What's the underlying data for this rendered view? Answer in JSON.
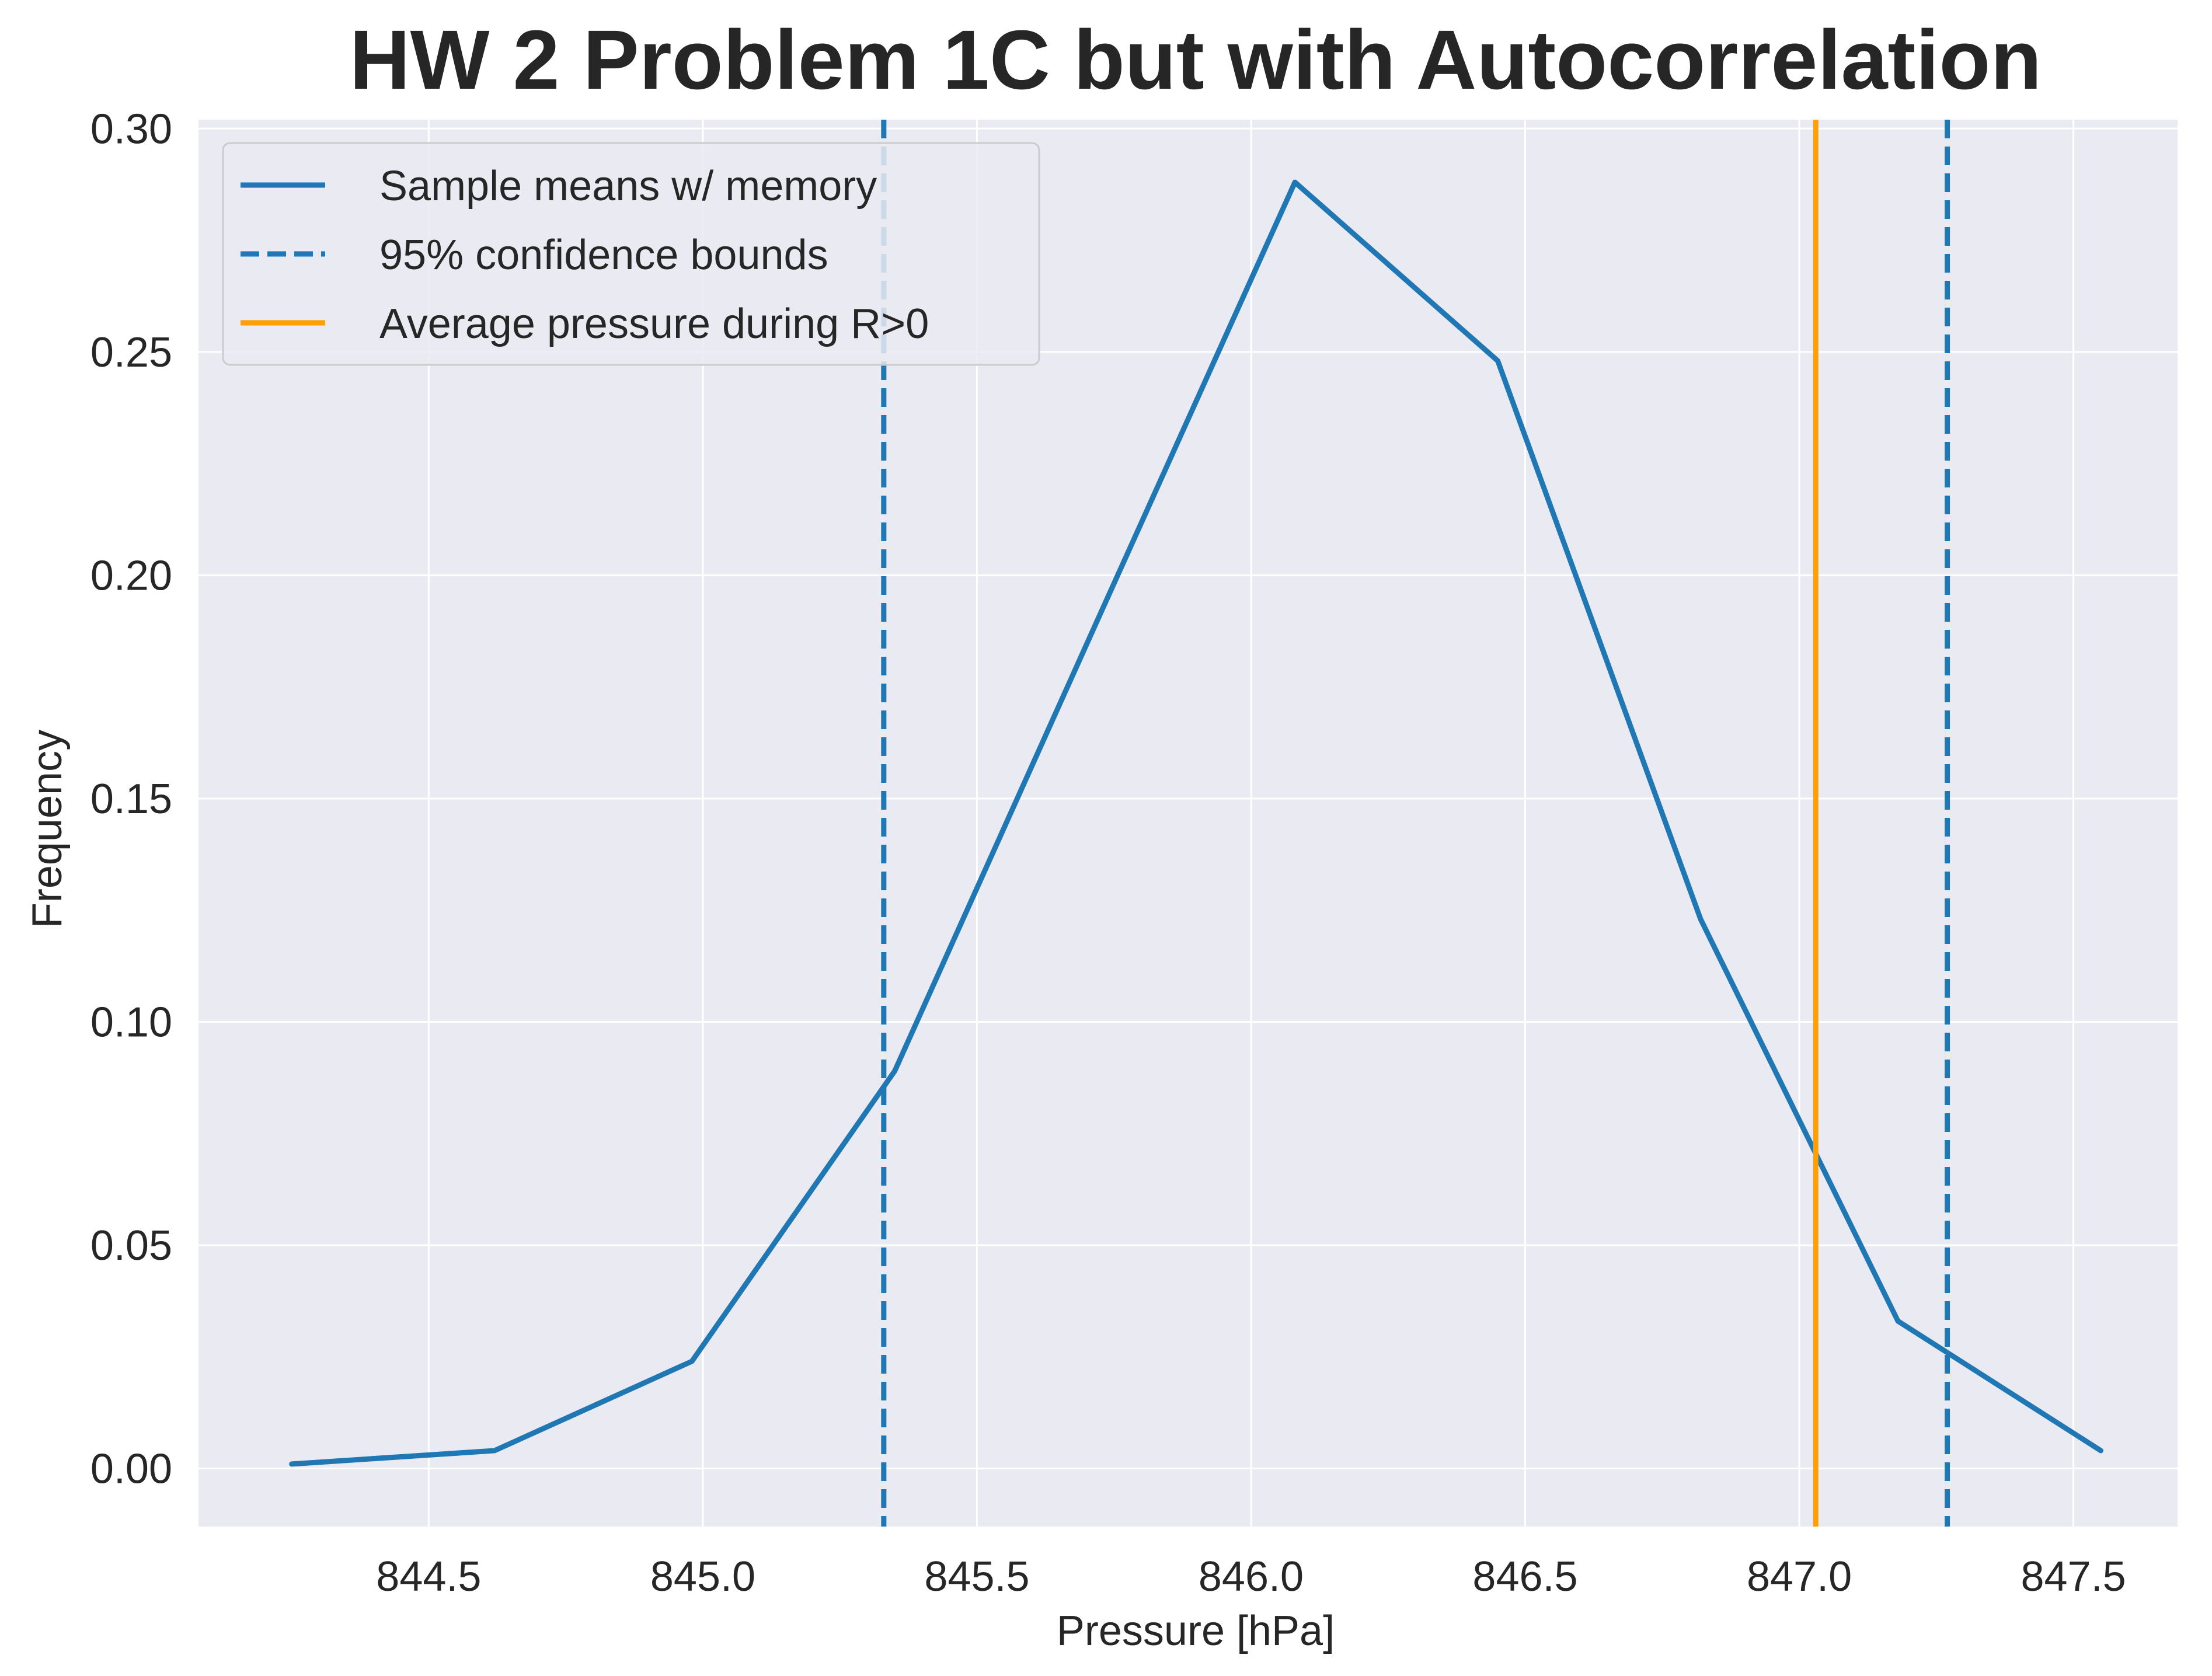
{
  "chart_data": {
    "type": "line",
    "title": "HW 2 Problem 1C but with Autocorrelation",
    "xlabel": "Pressure [hPa]",
    "ylabel": "Frequency",
    "xlim": [
      844.08,
      847.69
    ],
    "ylim": [
      -0.013,
      0.302
    ],
    "x_ticks": [
      844.5,
      845.0,
      845.5,
      846.0,
      846.5,
      847.0,
      847.5
    ],
    "x_tick_labels": [
      "844.5",
      "845.0",
      "845.5",
      "846.0",
      "846.5",
      "847.0",
      "847.5"
    ],
    "y_ticks": [
      0.0,
      0.05,
      0.1,
      0.15,
      0.2,
      0.25,
      0.3
    ],
    "y_tick_labels": [
      "0.00",
      "0.05",
      "0.10",
      "0.15",
      "0.20",
      "0.25",
      "0.30"
    ],
    "grid": true,
    "legend_position": "top-left",
    "series": [
      {
        "name": "Sample means w/ memory",
        "kind": "line",
        "color": "#1f77b4",
        "x": [
          844.25,
          844.62,
          844.98,
          845.35,
          845.72,
          846.08,
          846.45,
          846.82,
          847.18,
          847.55
        ],
        "values": [
          0.001,
          0.004,
          0.024,
          0.089,
          0.19,
          0.288,
          0.248,
          0.123,
          0.033,
          0.004
        ]
      },
      {
        "name": "95% confidence bounds",
        "kind": "vline",
        "style": "dashed",
        "color": "#1f77b4",
        "x": [
          845.33,
          847.27
        ]
      },
      {
        "name": "Average pressure during R>0",
        "kind": "vline",
        "style": "solid",
        "color": "#ff9f00",
        "x": [
          847.03
        ]
      }
    ],
    "colors": {
      "plot_background": "#eaeaf2",
      "grid": "#ffffff",
      "text": "#262626"
    }
  }
}
